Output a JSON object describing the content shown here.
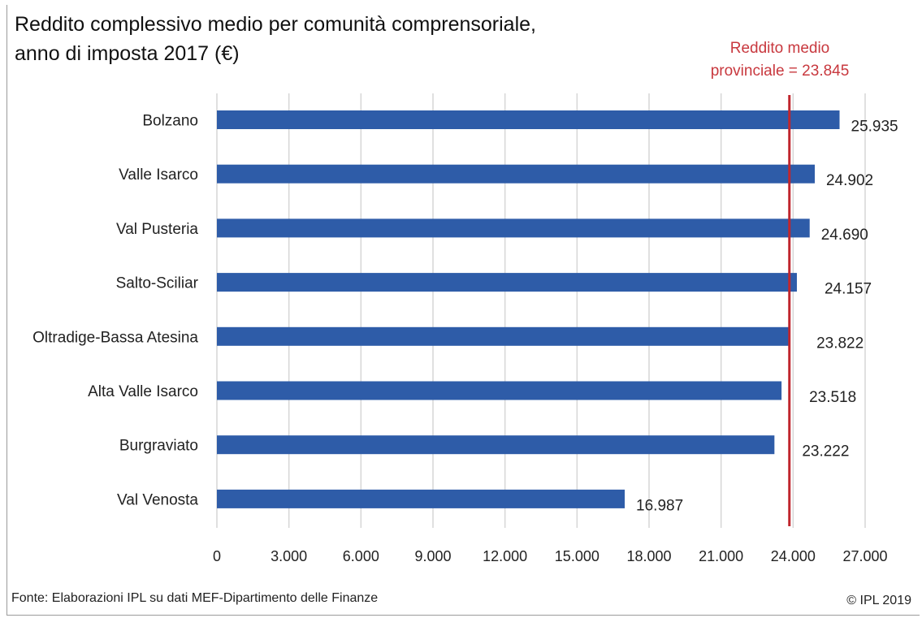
{
  "chart_data": {
    "type": "bar",
    "orientation": "horizontal",
    "title_lines": [
      "Reddito complessivo medio per comunità comprensoriale,",
      "anno di imposta 2017 (€)"
    ],
    "categories": [
      "Bolzano",
      "Valle Isarco",
      "Val Pusteria",
      "Salto-Sciliar",
      "Oltradige-Bassa Atesina",
      "Alta Valle Isarco",
      "Burgraviato",
      "Val Venosta"
    ],
    "values": [
      25935,
      24902,
      24690,
      24157,
      23822,
      23518,
      23222,
      16987
    ],
    "value_labels": [
      "25.935",
      "24.902",
      "24.690",
      "24.157",
      "23.822",
      "23.518",
      "23.222",
      "16.987"
    ],
    "xlim": [
      0,
      27000
    ],
    "ticks": [
      0,
      3000,
      6000,
      9000,
      12000,
      15000,
      18000,
      21000,
      24000,
      27000
    ],
    "tick_labels": [
      "0",
      "3.000",
      "6.000",
      "9.000",
      "12.000",
      "15.000",
      "18.000",
      "21.000",
      "24.000",
      "27.000"
    ],
    "grid": true,
    "bar_color": "#2e5ca8",
    "reference_line": {
      "value": 23845,
      "label_lines": [
        "Reddito medio",
        "provinciale = 23.845"
      ],
      "color": "#c0262d"
    }
  },
  "footer": {
    "source": "Fonte: Elaborazioni IPL su dati MEF-Dipartimento delle Finanze",
    "copyright": "© IPL 2019"
  }
}
